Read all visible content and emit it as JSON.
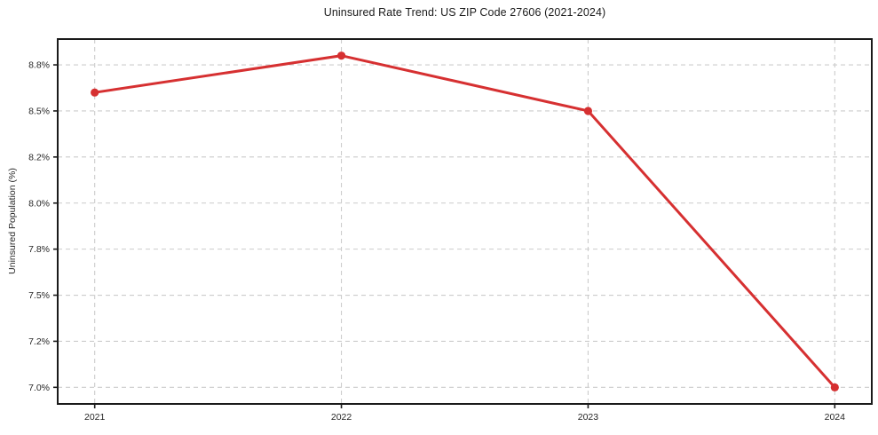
{
  "chart_data": {
    "type": "line",
    "title": "Uninsured Rate Trend: US ZIP Code 27606 (2021-2024)",
    "xlabel": "",
    "ylabel": "Uninsured Population (%)",
    "series_name": "Uninsured rate",
    "x": [
      2021,
      2022,
      2023,
      2024
    ],
    "values": [
      8.6,
      8.8,
      8.5,
      7.0
    ],
    "x_ticks": {
      "values": [
        2021,
        2022,
        2023,
        2024
      ],
      "labels": [
        "2021",
        "2022",
        "2023",
        "2024"
      ]
    },
    "y_ticks": {
      "values": [
        7.0,
        7.25,
        7.5,
        7.75,
        8.0,
        8.25,
        8.5,
        8.75
      ],
      "labels": [
        "7.0%",
        "7.2%",
        "7.5%",
        "7.8%",
        "8.0%",
        "8.2%",
        "8.5%",
        "8.8%"
      ]
    },
    "xlim": [
      2020.85,
      2024.15
    ],
    "ylim": [
      6.91,
      8.89
    ],
    "grid": true,
    "grid_style": "dashed",
    "legend": false,
    "colors": {
      "line": "#d63031",
      "marker": "#d63031",
      "grid": "#cccccc",
      "spine": "#1a1a1a",
      "tick": "#1a1a1a",
      "text": "#262626",
      "background": "#ffffff"
    }
  }
}
